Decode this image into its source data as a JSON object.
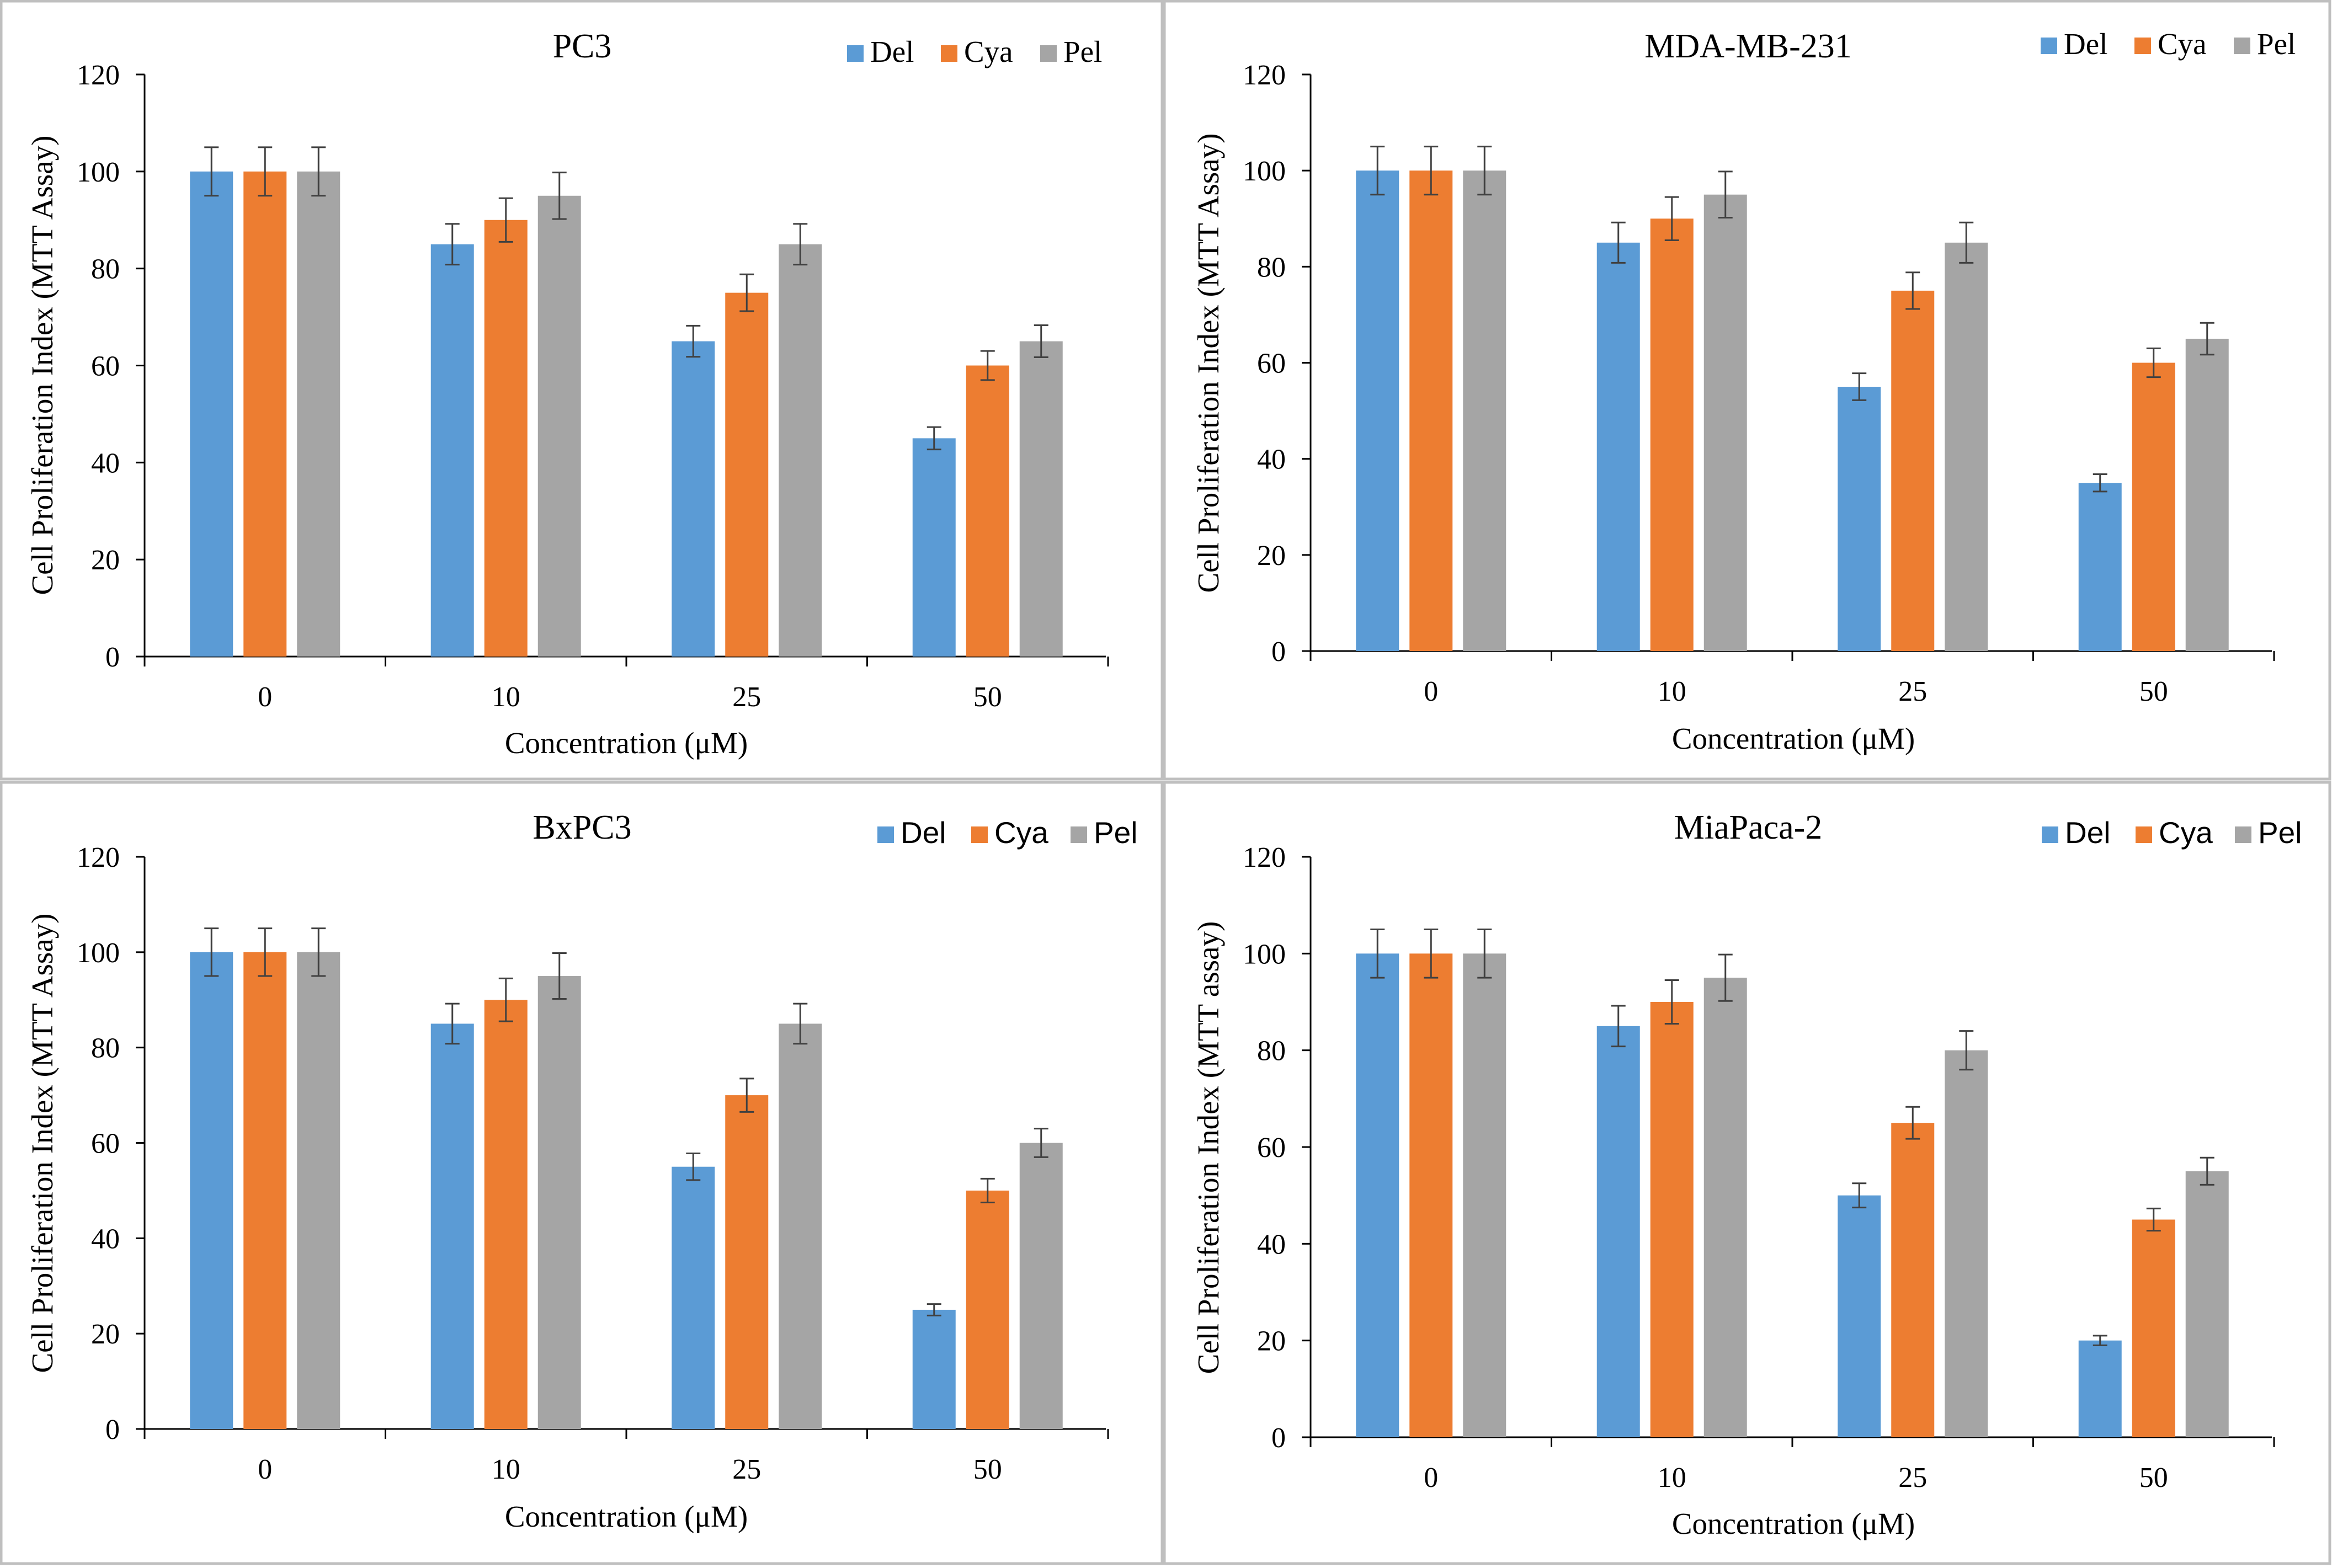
{
  "colors": {
    "Del": "#5b9bd5",
    "Cya": "#ed7d31",
    "Pel": "#a5a5a5",
    "axis": "#000000",
    "errorbar": "#404040",
    "frame": "#bfbfbf"
  },
  "chart_data": [
    {
      "type": "bar",
      "title": "PC3",
      "xlabel": "Concentration (μM)",
      "ylabel": "Cell Proliferation Index (MTT Assay)",
      "categories": [
        "0",
        "10",
        "25",
        "50"
      ],
      "ylim": [
        0,
        120
      ],
      "yticks": [
        "0",
        "20",
        "40",
        "60",
        "80",
        "100",
        "120"
      ],
      "legend_position": "top-right",
      "series": [
        {
          "name": "Del",
          "values": [
            100,
            85,
            65,
            45
          ],
          "errors": [
            5,
            4.2,
            3.2,
            2.3
          ]
        },
        {
          "name": "Cya",
          "values": [
            100,
            90,
            75,
            60
          ],
          "errors": [
            5,
            4.5,
            3.8,
            3
          ]
        },
        {
          "name": "Pel",
          "values": [
            100,
            95,
            85,
            65
          ],
          "errors": [
            5,
            4.8,
            4.2,
            3.3
          ]
        }
      ]
    },
    {
      "type": "bar",
      "title": "MDA-MB-231",
      "xlabel": "Concentration (μM)",
      "ylabel": "Cell Proliferation Index (MTT Assay)",
      "categories": [
        "0",
        "10",
        "25",
        "50"
      ],
      "ylim": [
        0,
        120
      ],
      "yticks": [
        "0",
        "20",
        "40",
        "60",
        "80",
        "100",
        "120"
      ],
      "legend_position": "top-right",
      "series": [
        {
          "name": "Del",
          "values": [
            100,
            85,
            55,
            35
          ],
          "errors": [
            5,
            4.2,
            2.8,
            1.8
          ]
        },
        {
          "name": "Cya",
          "values": [
            100,
            90,
            75,
            60
          ],
          "errors": [
            5,
            4.5,
            3.8,
            3
          ]
        },
        {
          "name": "Pel",
          "values": [
            100,
            95,
            85,
            65
          ],
          "errors": [
            5,
            4.8,
            4.2,
            3.3
          ]
        }
      ]
    },
    {
      "type": "bar",
      "title": "BxPC3",
      "xlabel": "Concentration (μM)",
      "ylabel": "Cell Proliferation Index (MTT Assay)",
      "categories": [
        "0",
        "10",
        "25",
        "50"
      ],
      "ylim": [
        0,
        120
      ],
      "yticks": [
        "0",
        "20",
        "40",
        "60",
        "80",
        "100",
        "120"
      ],
      "legend_position": "top-right",
      "series": [
        {
          "name": "Del",
          "values": [
            100,
            85,
            55,
            25
          ],
          "errors": [
            5,
            4.2,
            2.8,
            1.2
          ]
        },
        {
          "name": "Cya",
          "values": [
            100,
            90,
            70,
            50
          ],
          "errors": [
            5,
            4.5,
            3.5,
            2.5
          ]
        },
        {
          "name": "Pel",
          "values": [
            100,
            95,
            85,
            60
          ],
          "errors": [
            5,
            4.8,
            4.2,
            3
          ]
        }
      ]
    },
    {
      "type": "bar",
      "title": "MiaPaca-2",
      "xlabel": "Concentration (μM)",
      "ylabel": "Cell Proliferation Index (MTT assay)",
      "categories": [
        "0",
        "10",
        "25",
        "50"
      ],
      "ylim": [
        0,
        120
      ],
      "yticks": [
        "0",
        "20",
        "40",
        "60",
        "80",
        "100",
        "120"
      ],
      "legend_position": "top-right",
      "series": [
        {
          "name": "Del",
          "values": [
            100,
            85,
            50,
            20
          ],
          "errors": [
            5,
            4.2,
            2.5,
            1
          ]
        },
        {
          "name": "Cya",
          "values": [
            100,
            90,
            65,
            45
          ],
          "errors": [
            5,
            4.5,
            3.3,
            2.3
          ]
        },
        {
          "name": "Pel",
          "values": [
            100,
            95,
            80,
            55
          ],
          "errors": [
            5,
            4.8,
            4,
            2.8
          ]
        }
      ]
    }
  ]
}
